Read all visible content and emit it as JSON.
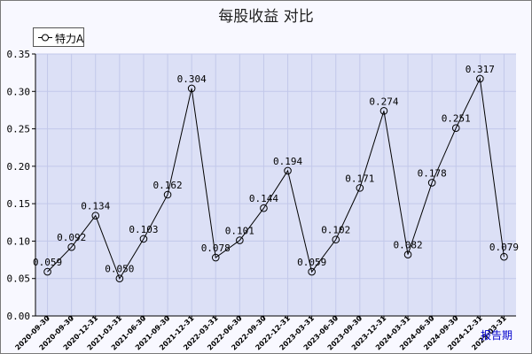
{
  "chart_data": {
    "type": "line",
    "title": "每股收益 对比",
    "xlabel": "报告期",
    "ylabel": "",
    "ylim": [
      0,
      0.35
    ],
    "yticks": [
      "0.00",
      "0.05",
      "0.10",
      "0.15",
      "0.20",
      "0.25",
      "0.30",
      "0.35"
    ],
    "grid": true,
    "legend_position": "top-left",
    "categories": [
      "2020-09-30",
      "2020-09-30",
      "2020-12-31",
      "2021-03-31",
      "2021-06-30",
      "2021-09-30",
      "2021-12-31",
      "2022-03-31",
      "2022-06-30",
      "2022-09-30",
      "2022-12-31",
      "2023-03-31",
      "2023-06-30",
      "2023-09-30",
      "2023-12-31",
      "2024-03-31",
      "2024-06-30",
      "2024-09-30",
      "2024-12-31",
      "2025-03-31"
    ],
    "series": [
      {
        "name": "特力A",
        "values": [
          0.059,
          0.092,
          0.134,
          0.05,
          0.103,
          0.162,
          0.304,
          0.078,
          0.101,
          0.144,
          0.194,
          0.059,
          0.102,
          0.171,
          0.274,
          0.082,
          0.178,
          0.251,
          0.317,
          0.079
        ],
        "labels": [
          "0.059",
          "0.092",
          "0.134",
          "0.050",
          "0.103",
          "0.162",
          "0.304",
          "0.078",
          "0.101",
          "0.144",
          "0.194",
          "0.059",
          "0.102",
          "0.171",
          "0.274",
          "0.082",
          "0.178",
          "0.251",
          "0.317",
          "0.079"
        ]
      }
    ],
    "colors": {
      "plot_background": "#dce0f6",
      "page_background": "#f8f8ff",
      "grid": "#c2c8ea",
      "line": "#000000"
    }
  }
}
